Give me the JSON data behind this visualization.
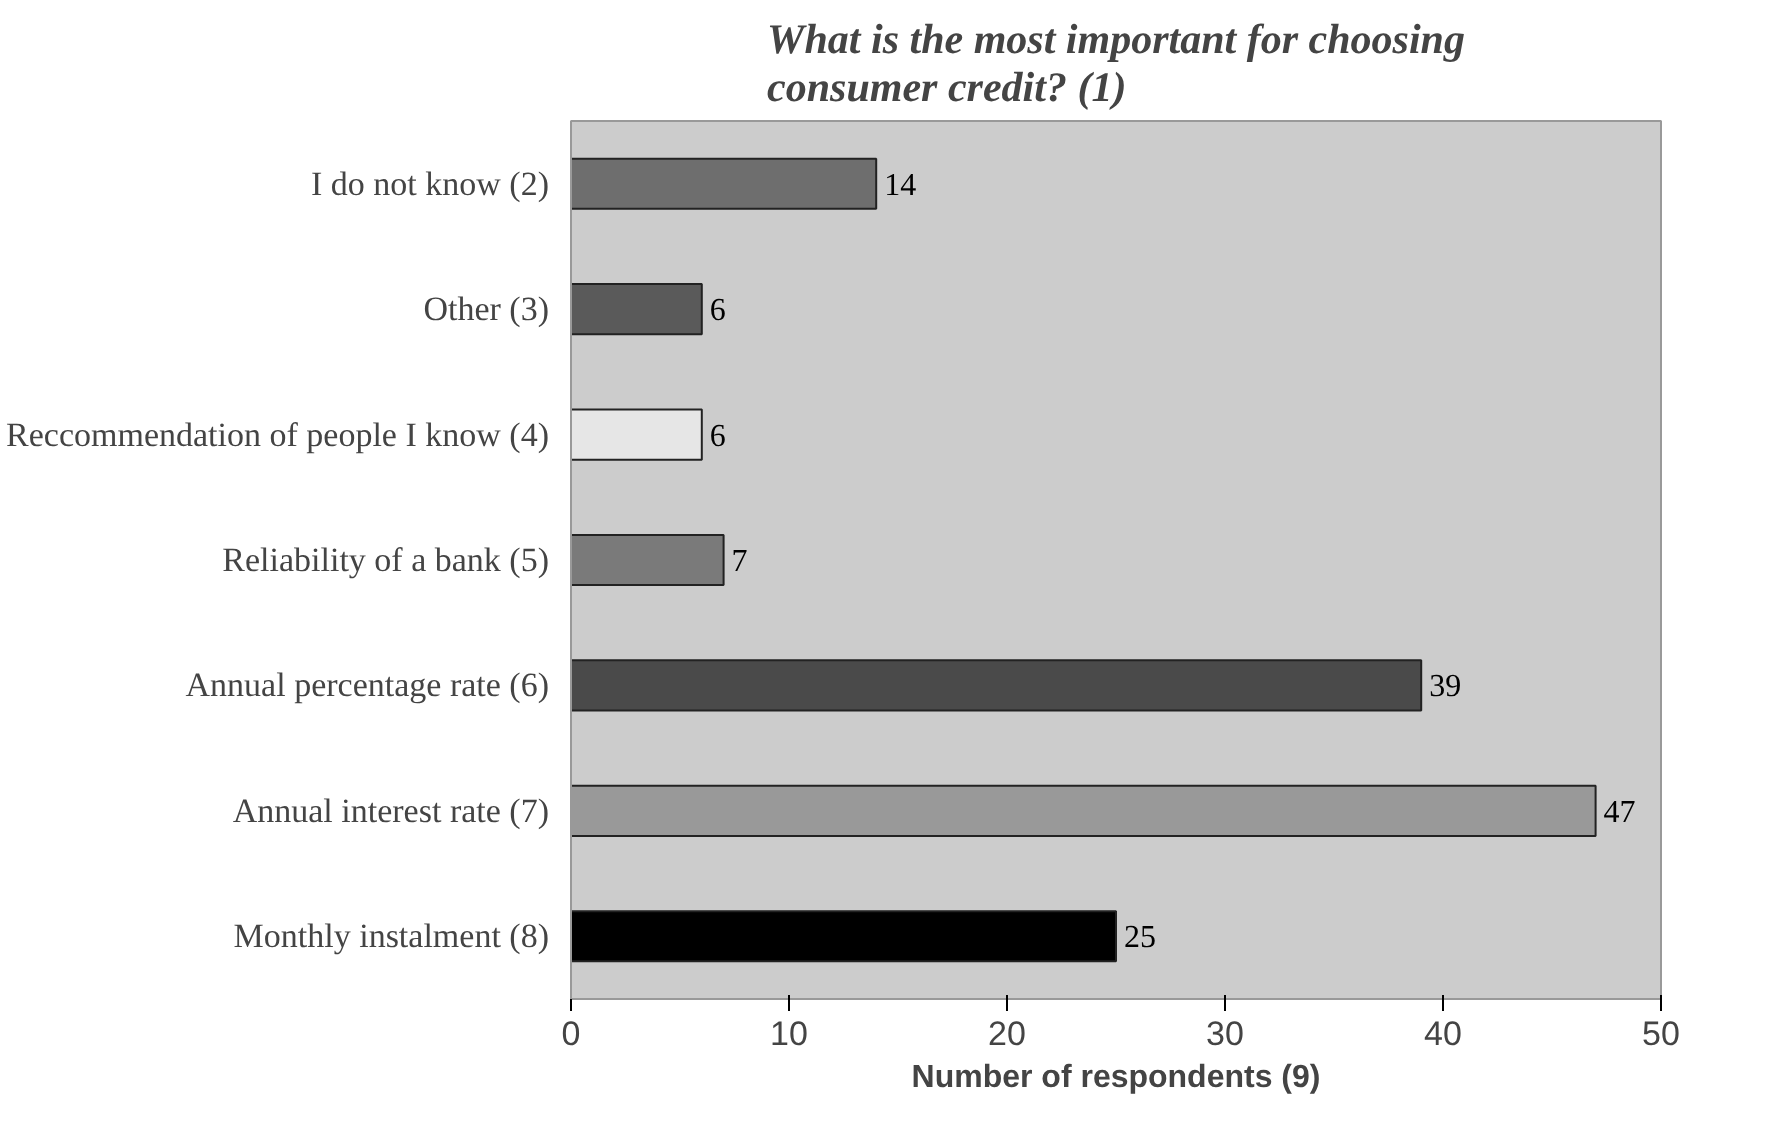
{
  "chart_data": {
    "type": "bar",
    "orientation": "horizontal",
    "title": "What is the most important for choosing\nconsumer credit? (1)",
    "xlabel": "Number of respondents (9)",
    "categories": [
      "I do not know (2)",
      "Other (3)",
      "Reccommendation of people I know (4)",
      "Reliability of a bank (5)",
      "Annual percentage rate (6)",
      "Annual interest rate (7)",
      "Monthly instalment (8)"
    ],
    "values": [
      14,
      6,
      6,
      7,
      39,
      47,
      25
    ],
    "colors": [
      "#6e6e6e",
      "#5a5a5a",
      "#e6e6e6",
      "#7a7a7a",
      "#4a4a4a",
      "#999999",
      "#000000"
    ],
    "xlim": [
      0,
      50
    ],
    "xticks": [
      0,
      10,
      20,
      30,
      40,
      50
    ],
    "grid": false,
    "data_labels": true
  }
}
